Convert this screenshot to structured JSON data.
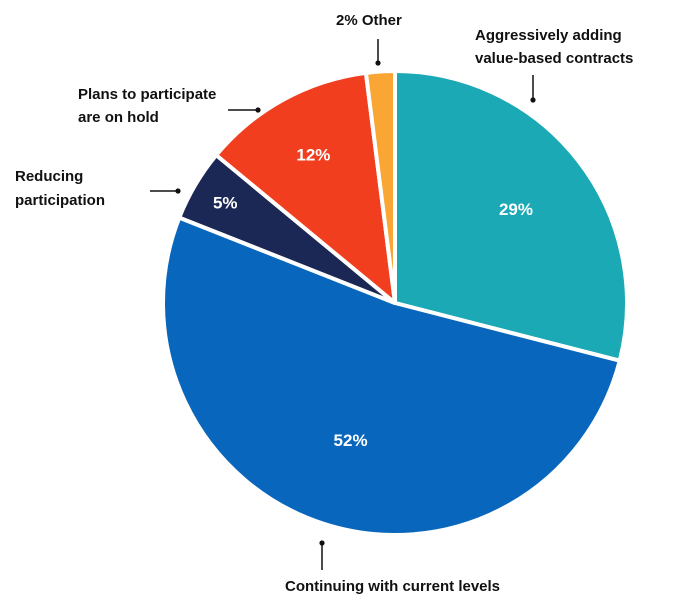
{
  "chart_data": {
    "type": "pie",
    "title": "",
    "start_angle_deg": 0,
    "direction": "clockwise",
    "slices": [
      {
        "name": "Aggressively adding value-based contracts",
        "label_lines": [
          "Aggressively adding",
          "value-based contracts"
        ],
        "value": 29,
        "value_label": "29%",
        "color": "#1BA9B5"
      },
      {
        "name": "Continuing with current levels",
        "label_lines": [
          "Continuing with current levels"
        ],
        "value": 52,
        "value_label": "52%",
        "color": "#0866BC"
      },
      {
        "name": "Reducing participation",
        "label_lines": [
          "Reducing",
          "participation"
        ],
        "value": 5,
        "value_label": "5%",
        "color": "#1B2754"
      },
      {
        "name": "Plans to participate are on hold",
        "label_lines": [
          "Plans to participate",
          "are on hold"
        ],
        "value": 12,
        "value_label": "12%",
        "color": "#F03E1E"
      },
      {
        "name": "Other",
        "label_lines": [
          "2% Other"
        ],
        "value": 2,
        "value_label": "",
        "color": "#F9A634"
      }
    ]
  }
}
